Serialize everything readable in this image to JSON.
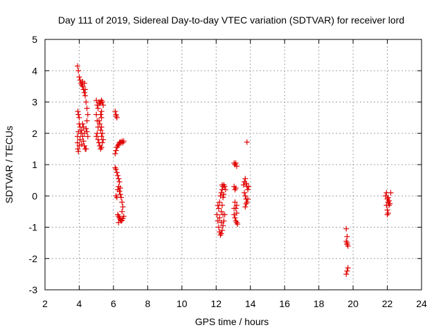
{
  "chart_data": {
    "type": "scatter",
    "title": "Day 111 of 2019, Sidereal Day-to-day VTEC variation (SDTVAR) for receiver lord",
    "xlabel": "GPS time / hours",
    "ylabel": "SDTVAR / TECUs",
    "xlim": [
      2,
      24
    ],
    "ylim": [
      -3,
      5
    ],
    "x_ticks": [
      2,
      4,
      6,
      8,
      10,
      12,
      14,
      16,
      18,
      20,
      22,
      24
    ],
    "y_ticks": [
      -3,
      -2,
      -1,
      0,
      1,
      2,
      3,
      4,
      5
    ],
    "grid": true,
    "marker": "+",
    "color": "#e00000",
    "series": [
      {
        "name": "SDTVAR",
        "points": [
          [
            3.9,
            4.15
          ],
          [
            3.95,
            4.0
          ],
          [
            4.0,
            3.8
          ],
          [
            4.05,
            3.7
          ],
          [
            4.1,
            3.6
          ],
          [
            4.15,
            3.55
          ],
          [
            4.2,
            3.5
          ],
          [
            4.25,
            3.4
          ],
          [
            4.3,
            3.3
          ],
          [
            4.35,
            3.2
          ],
          [
            4.4,
            3.0
          ],
          [
            4.45,
            2.8
          ],
          [
            4.5,
            2.6
          ],
          [
            4.2,
            3.65
          ],
          [
            4.3,
            3.6
          ],
          [
            4.35,
            3.4
          ],
          [
            3.92,
            2.7
          ],
          [
            3.95,
            2.6
          ],
          [
            4.0,
            2.5
          ],
          [
            4.0,
            2.3
          ],
          [
            4.05,
            2.2
          ],
          [
            3.95,
            2.05
          ],
          [
            3.9,
            1.9
          ],
          [
            3.9,
            1.7
          ],
          [
            3.92,
            1.5
          ],
          [
            3.95,
            1.42
          ],
          [
            4.0,
            1.6
          ],
          [
            4.05,
            1.8
          ],
          [
            4.1,
            2.0
          ],
          [
            4.15,
            2.1
          ],
          [
            4.2,
            1.9
          ],
          [
            4.25,
            1.75
          ],
          [
            4.3,
            1.6
          ],
          [
            4.35,
            1.5
          ],
          [
            4.4,
            1.5
          ],
          [
            4.2,
            2.3
          ],
          [
            4.25,
            2.2
          ],
          [
            4.3,
            2.0
          ],
          [
            4.4,
            2.15
          ],
          [
            4.45,
            2.05
          ],
          [
            4.5,
            1.9
          ],
          [
            4.45,
            2.4
          ],
          [
            4.15,
            1.65
          ],
          [
            5.0,
            3.05
          ],
          [
            5.05,
            2.9
          ],
          [
            5.1,
            2.8
          ],
          [
            5.15,
            3.0
          ],
          [
            5.2,
            2.95
          ],
          [
            5.25,
            3.0
          ],
          [
            5.3,
            3.05
          ],
          [
            5.35,
            3.0
          ],
          [
            5.4,
            2.9
          ],
          [
            5.3,
            2.7
          ],
          [
            5.25,
            2.6
          ],
          [
            5.0,
            2.6
          ],
          [
            5.05,
            2.4
          ],
          [
            5.1,
            2.2
          ],
          [
            5.05,
            2.0
          ],
          [
            5.0,
            1.9
          ],
          [
            5.1,
            1.8
          ],
          [
            5.15,
            1.7
          ],
          [
            5.2,
            1.6
          ],
          [
            5.25,
            1.5
          ],
          [
            5.3,
            1.55
          ],
          [
            5.35,
            1.7
          ],
          [
            5.3,
            1.9
          ],
          [
            5.25,
            2.1
          ],
          [
            5.2,
            2.3
          ],
          [
            5.15,
            2.4
          ],
          [
            5.3,
            2.2
          ],
          [
            5.35,
            2.0
          ],
          [
            5.4,
            1.8
          ],
          [
            5.3,
            2.5
          ],
          [
            6.1,
            2.7
          ],
          [
            6.15,
            2.6
          ],
          [
            6.2,
            2.5
          ],
          [
            6.15,
            2.55
          ],
          [
            6.1,
            1.35
          ],
          [
            6.15,
            1.45
          ],
          [
            6.2,
            1.55
          ],
          [
            6.25,
            1.6
          ],
          [
            6.3,
            1.65
          ],
          [
            6.35,
            1.7
          ],
          [
            6.4,
            1.72
          ],
          [
            6.45,
            1.7
          ],
          [
            6.5,
            1.75
          ],
          [
            6.55,
            1.7
          ],
          [
            6.6,
            1.75
          ],
          [
            6.1,
            0.9
          ],
          [
            6.15,
            0.85
          ],
          [
            6.2,
            0.75
          ],
          [
            6.25,
            0.65
          ],
          [
            6.3,
            0.55
          ],
          [
            6.35,
            0.45
          ],
          [
            6.3,
            0.3
          ],
          [
            6.25,
            0.2
          ],
          [
            6.35,
            0.15
          ],
          [
            6.4,
            0.05
          ],
          [
            6.45,
            -0.05
          ],
          [
            6.5,
            -0.2
          ],
          [
            6.55,
            -0.35
          ],
          [
            6.5,
            -0.5
          ],
          [
            6.15,
            0.0
          ],
          [
            6.2,
            -0.05
          ],
          [
            6.3,
            -0.65
          ],
          [
            6.35,
            -0.7
          ],
          [
            6.4,
            -0.75
          ],
          [
            6.45,
            -0.8
          ],
          [
            6.5,
            -0.78
          ],
          [
            6.55,
            -0.72
          ],
          [
            6.6,
            -0.65
          ],
          [
            6.25,
            -0.6
          ],
          [
            6.3,
            -0.85
          ],
          [
            6.4,
            0.25
          ],
          [
            12.05,
            -0.6
          ],
          [
            12.1,
            -0.8
          ],
          [
            12.15,
            -1.0
          ],
          [
            12.2,
            -1.15
          ],
          [
            12.25,
            -1.25
          ],
          [
            12.3,
            -1.2
          ],
          [
            12.35,
            -1.1
          ],
          [
            12.4,
            -0.95
          ],
          [
            12.45,
            -0.8
          ],
          [
            12.5,
            -0.6
          ],
          [
            12.15,
            -0.4
          ],
          [
            12.2,
            -0.2
          ],
          [
            12.25,
            0.0
          ],
          [
            12.3,
            0.1
          ],
          [
            12.35,
            0.2
          ],
          [
            12.4,
            0.3
          ],
          [
            12.45,
            0.35
          ],
          [
            12.5,
            0.3
          ],
          [
            12.55,
            0.2
          ],
          [
            12.3,
            -0.5
          ],
          [
            12.35,
            -0.3
          ],
          [
            12.4,
            -0.05
          ],
          [
            12.45,
            0.05
          ],
          [
            12.1,
            -0.3
          ],
          [
            12.2,
            -0.7
          ],
          [
            12.3,
            -0.85
          ],
          [
            12.4,
            -0.6
          ],
          [
            12.35,
            0.35
          ],
          [
            13.05,
            1.05
          ],
          [
            13.1,
            1.0
          ],
          [
            13.15,
            1.05
          ],
          [
            13.2,
            0.95
          ],
          [
            13.05,
            0.3
          ],
          [
            13.1,
            0.2
          ],
          [
            13.15,
            0.25
          ],
          [
            13.1,
            -0.2
          ],
          [
            13.15,
            -0.4
          ],
          [
            13.2,
            -0.55
          ],
          [
            13.05,
            -0.6
          ],
          [
            13.1,
            -0.7
          ],
          [
            13.15,
            -0.8
          ],
          [
            13.2,
            -0.85
          ],
          [
            13.25,
            -0.9
          ],
          [
            13.2,
            -0.3
          ],
          [
            13.05,
            -0.4
          ],
          [
            13.6,
            0.35
          ],
          [
            13.65,
            0.45
          ],
          [
            13.7,
            0.55
          ],
          [
            13.75,
            0.4
          ],
          [
            13.8,
            0.3
          ],
          [
            13.85,
            0.2
          ],
          [
            13.9,
            0.3
          ],
          [
            13.65,
            0.1
          ],
          [
            13.7,
            0.0
          ],
          [
            13.75,
            -0.1
          ],
          [
            13.8,
            -0.2
          ],
          [
            13.85,
            -0.1
          ],
          [
            13.7,
            -0.35
          ],
          [
            13.75,
            -0.25
          ],
          [
            13.8,
            1.72
          ],
          [
            19.6,
            -1.05
          ],
          [
            19.65,
            -1.3
          ],
          [
            19.6,
            -1.45
          ],
          [
            19.65,
            -1.55
          ],
          [
            19.7,
            -1.6
          ],
          [
            19.65,
            -1.5
          ],
          [
            19.7,
            -2.3
          ],
          [
            19.65,
            -2.4
          ],
          [
            19.6,
            -2.5
          ],
          [
            21.9,
            0.0
          ],
          [
            21.95,
            0.1
          ],
          [
            22.0,
            -0.1
          ],
          [
            22.05,
            -0.2
          ],
          [
            22.1,
            -0.3
          ],
          [
            22.0,
            -0.45
          ],
          [
            22.05,
            -0.55
          ],
          [
            22.0,
            -0.6
          ],
          [
            22.1,
            -0.15
          ],
          [
            22.15,
            -0.25
          ],
          [
            22.2,
            0.1
          ],
          [
            21.95,
            -0.3
          ],
          [
            22.05,
            -0.05
          ]
        ]
      }
    ]
  }
}
